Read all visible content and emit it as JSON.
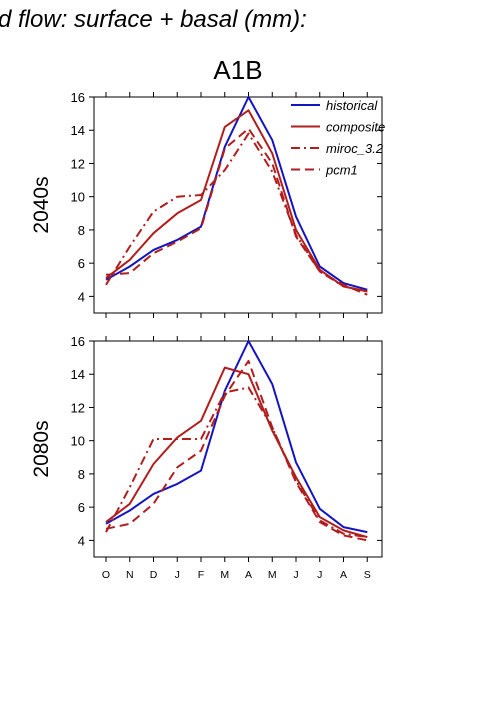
{
  "figure": {
    "title": "d flow: surface + basal (mm):",
    "scenario": "A1B"
  },
  "colors": {
    "historical": "#1515c0",
    "composite": "#b01e1e",
    "miroc_3.2": "#b01e1e",
    "pcm1": "#b01e1e",
    "axis": "#000000"
  },
  "chart_data": [
    {
      "type": "line",
      "title": "A1B",
      "panel_label": "2040s",
      "categories": [
        "O",
        "N",
        "D",
        "J",
        "F",
        "M",
        "A",
        "M",
        "J",
        "J",
        "A",
        "S"
      ],
      "ylim": [
        3,
        16
      ],
      "yticks": [
        4,
        6,
        8,
        10,
        12,
        14,
        16
      ],
      "legend": "top-right",
      "series": [
        {
          "name": "historical",
          "style": "solid",
          "color": "#1515c0",
          "values": [
            5.0,
            5.8,
            6.8,
            7.4,
            8.2,
            13.0,
            16.0,
            13.4,
            8.8,
            5.8,
            4.8,
            4.4
          ]
        },
        {
          "name": "composite",
          "style": "solid",
          "color": "#b01e1e",
          "values": [
            5.1,
            6.2,
            7.8,
            9.0,
            9.8,
            14.2,
            15.2,
            12.6,
            8.0,
            5.6,
            4.6,
            4.3
          ]
        },
        {
          "name": "miroc_3.2",
          "style": "dashdot",
          "color": "#b01e1e",
          "values": [
            4.7,
            7.0,
            9.1,
            10.0,
            10.1,
            11.6,
            13.8,
            11.5,
            7.7,
            5.5,
            4.6,
            4.3
          ]
        },
        {
          "name": "pcm1",
          "style": "dash",
          "color": "#b01e1e",
          "values": [
            5.3,
            5.4,
            6.6,
            7.3,
            8.1,
            12.9,
            14.1,
            12.0,
            7.6,
            5.5,
            4.7,
            4.1
          ]
        }
      ]
    },
    {
      "type": "line",
      "title": "",
      "panel_label": "2080s",
      "categories": [
        "O",
        "N",
        "D",
        "J",
        "F",
        "M",
        "A",
        "M",
        "J",
        "J",
        "A",
        "S"
      ],
      "ylim": [
        3,
        16
      ],
      "yticks": [
        4,
        6,
        8,
        10,
        12,
        14,
        16
      ],
      "series": [
        {
          "name": "historical",
          "style": "solid",
          "color": "#1515c0",
          "values": [
            5.0,
            5.8,
            6.8,
            7.4,
            8.2,
            13.0,
            16.0,
            13.4,
            8.7,
            5.9,
            4.8,
            4.5
          ]
        },
        {
          "name": "composite",
          "style": "solid",
          "color": "#b01e1e",
          "values": [
            5.1,
            6.2,
            8.6,
            10.2,
            11.2,
            14.4,
            14.0,
            10.6,
            7.8,
            5.4,
            4.6,
            4.2
          ]
        },
        {
          "name": "miroc_3.2",
          "style": "dashdot",
          "color": "#b01e1e",
          "values": [
            4.5,
            7.2,
            10.1,
            10.1,
            10.1,
            12.9,
            13.2,
            10.8,
            7.6,
            5.2,
            4.4,
            4.2
          ]
        },
        {
          "name": "pcm1",
          "style": "dash",
          "color": "#b01e1e",
          "values": [
            4.7,
            5.0,
            6.2,
            8.4,
            9.4,
            12.7,
            14.8,
            10.8,
            7.5,
            5.1,
            4.3,
            4.0
          ]
        }
      ]
    }
  ]
}
